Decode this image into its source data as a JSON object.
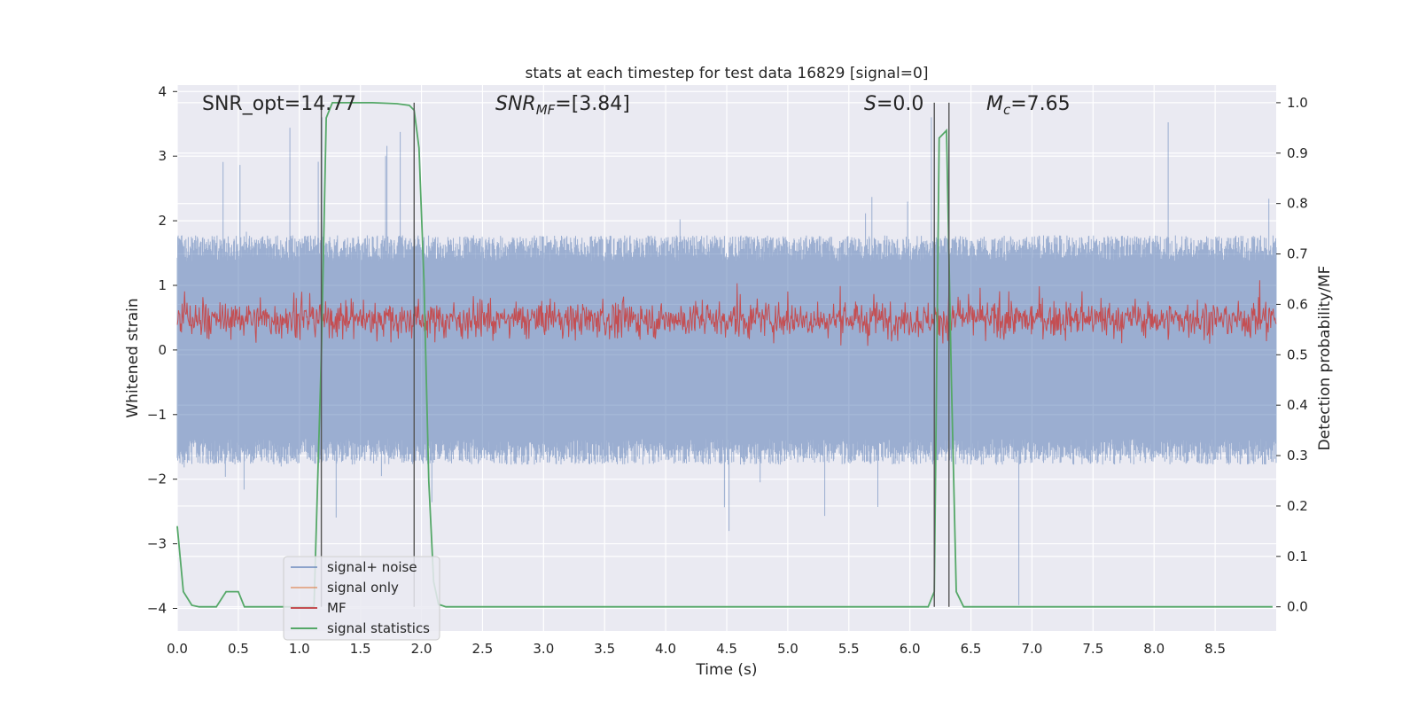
{
  "chart_data": {
    "type": "line",
    "title": "stats at each timestep for test data 16829 [signal=0]",
    "xlabel": "Time (s)",
    "ylabel": "Whitened strain",
    "ylabel_right": "Detection probability/MF",
    "xlim": [
      0.0,
      9.0
    ],
    "ylim": [
      -4.35,
      4.1
    ],
    "ylim_right": [
      -0.048,
      1.035
    ],
    "x_ticks": [
      "0.0",
      "0.5",
      "1.0",
      "1.5",
      "2.0",
      "2.5",
      "3.0",
      "3.5",
      "4.0",
      "4.5",
      "5.0",
      "5.5",
      "6.0",
      "6.5",
      "7.0",
      "7.5",
      "8.0",
      "8.5"
    ],
    "y_ticks": [
      "4",
      "3",
      "2",
      "1",
      "0",
      "−1",
      "−2",
      "−3",
      "−4"
    ],
    "y_ticks_right": [
      "1.0",
      "0.9",
      "0.8",
      "0.7",
      "0.6",
      "0.5",
      "0.4",
      "0.3",
      "0.2",
      "0.1",
      "0.0"
    ],
    "grid": true,
    "legend_position": "lower-left",
    "annotations": {
      "snr_opt": "SNR_opt=14.77",
      "snr_mf_main": "SNR",
      "snr_mf_sub": "MF",
      "snr_mf_value": "=[3.84]",
      "s_symbol": "S",
      "s_value": "=0.0",
      "mc_symbol": "M",
      "mc_sub": "c",
      "mc_value": "=7.65"
    },
    "series": [
      {
        "name": "signal+ noise",
        "color": "#4c72b0",
        "axis": "left",
        "description_range": [
          -2.5,
          2.5
        ]
      },
      {
        "name": "signal only",
        "color": "#dd8452",
        "axis": "left",
        "values": []
      },
      {
        "name": "MF",
        "color": "#c44e52",
        "axis": "right",
        "description_range": [
          0.52,
          0.62
        ]
      },
      {
        "name": "signal statistics",
        "color": "#55a868",
        "axis": "right",
        "x": [
          0.0,
          0.05,
          0.12,
          0.18,
          0.25,
          0.32,
          0.4,
          0.45,
          0.5,
          0.55,
          1.12,
          1.18,
          1.22,
          1.27,
          1.3,
          1.4,
          1.6,
          1.8,
          1.9,
          1.94,
          1.98,
          2.02,
          2.06,
          2.1,
          2.14,
          2.2,
          6.15,
          6.2,
          6.24,
          6.3,
          6.34,
          6.38,
          6.44,
          8.97
        ],
        "values": [
          0.16,
          0.03,
          0.003,
          0.0,
          0.0,
          0.0,
          0.03,
          0.03,
          0.03,
          0.0,
          0.0,
          0.5,
          0.97,
          1.0,
          1.0,
          1.0,
          1.0,
          0.998,
          0.995,
          0.985,
          0.91,
          0.65,
          0.25,
          0.05,
          0.005,
          0.0,
          0.0,
          0.03,
          0.93,
          0.945,
          0.45,
          0.03,
          0.0,
          0.0
        ]
      }
    ],
    "vlines": [
      1.18,
      1.94,
      6.2,
      6.32
    ]
  }
}
